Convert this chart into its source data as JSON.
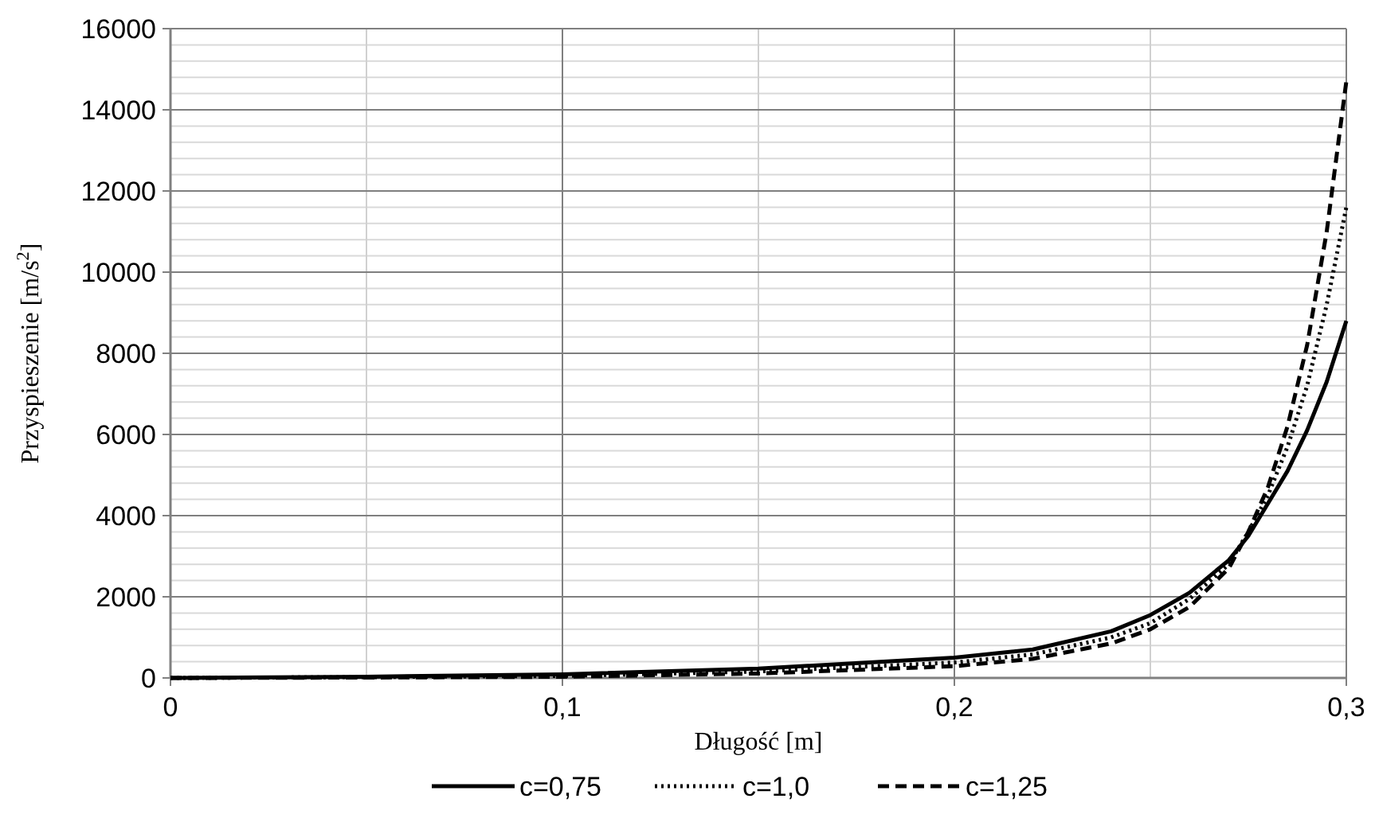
{
  "chart_data": {
    "type": "line",
    "xlabel": "Długość [m]",
    "ylabel": "Przyspieszenie [m/s$^{2}$]",
    "x": [
      0,
      0.05,
      0.1,
      0.15,
      0.2,
      0.22,
      0.24,
      0.25,
      0.26,
      0.27,
      0.275,
      0.28,
      0.285,
      0.29,
      0.295,
      0.3
    ],
    "series": [
      {
        "name": "c=0,75",
        "color": "#000000",
        "line_style": "solid",
        "values": [
          0,
          30,
          90,
          230,
          500,
          700,
          1150,
          1550,
          2100,
          2900,
          3500,
          4300,
          5100,
          6100,
          7300,
          8800
        ]
      },
      {
        "name": "c=1,0",
        "color": "#000000",
        "line_style": "dotted",
        "values": [
          0,
          20,
          50,
          160,
          380,
          580,
          1000,
          1350,
          1950,
          2800,
          3600,
          4500,
          5700,
          7200,
          9200,
          11600
        ]
      },
      {
        "name": "c=1,25",
        "color": "#000000",
        "line_style": "dashed",
        "values": [
          0,
          10,
          30,
          110,
          290,
          470,
          850,
          1200,
          1750,
          2700,
          3600,
          4700,
          6200,
          8200,
          11000,
          14700
        ]
      }
    ],
    "xlim": [
      0,
      0.3
    ],
    "xticks": [
      {
        "value": 0,
        "label": "0"
      },
      {
        "value": 0.1,
        "label": "0,1"
      },
      {
        "value": 0.2,
        "label": "0,2"
      },
      {
        "value": 0.3,
        "label": "0,3"
      }
    ],
    "ylim": [
      0,
      16000
    ],
    "yticks": [
      0,
      2000,
      4000,
      6000,
      8000,
      10000,
      12000,
      14000,
      16000
    ],
    "grid": true,
    "legend": "bottom"
  }
}
